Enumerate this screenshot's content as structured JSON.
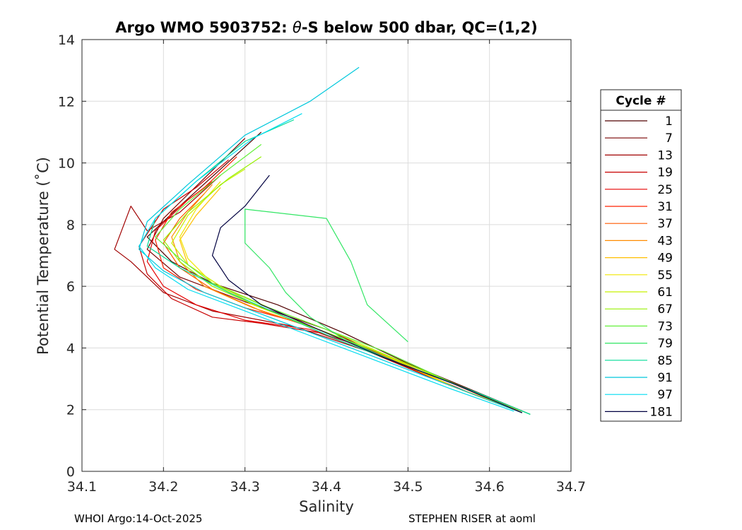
{
  "chart_data": {
    "type": "line",
    "title": "Argo WMO 5903752: θ-S below 500 dbar,  QC=(1,2)",
    "title_parts": {
      "prefix": "Argo WMO 5903752: ",
      "theta": "θ",
      "suffix": "-S below 500 dbar,  QC=(1,2)"
    },
    "xlabel": "Salinity",
    "ylabel": "Potential Temperature (˚C)",
    "xlim": [
      34.1,
      34.7
    ],
    "ylim": [
      0,
      14
    ],
    "xticks": [
      34.1,
      34.2,
      34.3,
      34.4,
      34.5,
      34.6,
      34.7
    ],
    "yticks": [
      0,
      2,
      4,
      6,
      8,
      10,
      12,
      14
    ],
    "xtick_labels": [
      "34.1",
      "34.2",
      "34.3",
      "34.4",
      "34.5",
      "34.6",
      "34.7"
    ],
    "ytick_labels": [
      "0",
      "2",
      "4",
      "6",
      "8",
      "10",
      "12",
      "14"
    ],
    "grid": true,
    "legend": {
      "title": "Cycle #",
      "placement": "right-outside",
      "entries": [
        {
          "label": "1",
          "color": "#500000"
        },
        {
          "label": "7",
          "color": "#780000"
        },
        {
          "label": "13",
          "color": "#a00000"
        },
        {
          "label": "19",
          "color": "#c80000"
        },
        {
          "label": "25",
          "color": "#e60000"
        },
        {
          "label": "31",
          "color": "#ff2000"
        },
        {
          "label": "37",
          "color": "#ff5a00"
        },
        {
          "label": "43",
          "color": "#ff8c00"
        },
        {
          "label": "49",
          "color": "#ffbe00"
        },
        {
          "label": "55",
          "color": "#f0e600"
        },
        {
          "label": "61",
          "color": "#c8f000"
        },
        {
          "label": "67",
          "color": "#96f000"
        },
        {
          "label": "73",
          "color": "#64f03c"
        },
        {
          "label": "79",
          "color": "#32e664"
        },
        {
          "label": "85",
          "color": "#00dc96"
        },
        {
          "label": "91",
          "color": "#00c8dc"
        },
        {
          "label": "97",
          "color": "#00dcf0"
        },
        {
          "label": "181",
          "color": "#000040"
        }
      ]
    },
    "series": [
      {
        "name": "1",
        "color": "#500000",
        "points": [
          [
            34.65,
            1.85
          ],
          [
            34.6,
            2.4
          ],
          [
            34.5,
            3.5
          ],
          [
            34.42,
            4.5
          ],
          [
            34.34,
            5.4
          ],
          [
            34.26,
            6.1
          ],
          [
            34.21,
            6.8
          ],
          [
            34.18,
            7.6
          ],
          [
            34.22,
            8.6
          ],
          [
            34.27,
            9.8
          ],
          [
            34.32,
            11.0
          ]
        ]
      },
      {
        "name": "7",
        "color": "#780000",
        "points": [
          [
            34.64,
            1.9
          ],
          [
            34.58,
            2.5
          ],
          [
            34.48,
            3.6
          ],
          [
            34.4,
            4.6
          ],
          [
            34.3,
            5.5
          ],
          [
            34.22,
            6.3
          ],
          [
            34.18,
            7.2
          ],
          [
            34.2,
            8.2
          ],
          [
            34.25,
            9.5
          ],
          [
            34.3,
            10.8
          ]
        ]
      },
      {
        "name": "13",
        "color": "#a00000",
        "points": [
          [
            34.64,
            1.9
          ],
          [
            34.55,
            2.8
          ],
          [
            34.45,
            3.9
          ],
          [
            34.36,
            4.7
          ],
          [
            34.26,
            5.2
          ],
          [
            34.2,
            5.8
          ],
          [
            34.16,
            6.8
          ],
          [
            34.14,
            7.2
          ],
          [
            34.16,
            8.6
          ],
          [
            34.18,
            7.8
          ],
          [
            34.22,
            8.4
          ],
          [
            34.27,
            9.6
          ]
        ]
      },
      {
        "name": "19",
        "color": "#c80000",
        "points": [
          [
            34.63,
            2.0
          ],
          [
            34.55,
            2.9
          ],
          [
            34.46,
            3.8
          ],
          [
            34.39,
            4.5
          ],
          [
            34.32,
            4.8
          ],
          [
            34.26,
            5.0
          ],
          [
            34.21,
            5.6
          ],
          [
            34.18,
            6.4
          ],
          [
            34.17,
            7.3
          ],
          [
            34.2,
            8.5
          ],
          [
            34.24,
            9.2
          ],
          [
            34.28,
            10.1
          ]
        ]
      },
      {
        "name": "25",
        "color": "#e60000",
        "points": [
          [
            34.64,
            1.95
          ],
          [
            34.56,
            2.7
          ],
          [
            34.46,
            3.9
          ],
          [
            34.38,
            4.6
          ],
          [
            34.3,
            4.9
          ],
          [
            34.24,
            5.4
          ],
          [
            34.2,
            6.0
          ],
          [
            34.18,
            6.8
          ],
          [
            34.19,
            7.8
          ],
          [
            34.23,
            8.8
          ],
          [
            34.26,
            9.4
          ]
        ]
      },
      {
        "name": "31",
        "color": "#ff2000",
        "points": [
          [
            34.63,
            2.0
          ],
          [
            34.54,
            2.9
          ],
          [
            34.45,
            4.0
          ],
          [
            34.37,
            4.8
          ],
          [
            34.3,
            5.3
          ],
          [
            34.24,
            5.9
          ],
          [
            34.2,
            6.6
          ],
          [
            34.19,
            7.5
          ],
          [
            34.21,
            8.4
          ],
          [
            34.25,
            9.2
          ],
          [
            34.29,
            10.2
          ]
        ]
      },
      {
        "name": "37",
        "color": "#ff5a00",
        "points": [
          [
            34.64,
            1.95
          ],
          [
            34.56,
            2.8
          ],
          [
            34.47,
            3.8
          ],
          [
            34.39,
            4.6
          ],
          [
            34.32,
            5.2
          ],
          [
            34.26,
            5.9
          ],
          [
            34.22,
            6.6
          ],
          [
            34.2,
            7.4
          ],
          [
            34.22,
            8.2
          ],
          [
            34.25,
            9.0
          ]
        ]
      },
      {
        "name": "43",
        "color": "#ff8c00",
        "points": [
          [
            34.63,
            2.0
          ],
          [
            34.55,
            2.8
          ],
          [
            34.46,
            3.9
          ],
          [
            34.38,
            4.7
          ],
          [
            34.31,
            5.3
          ],
          [
            34.25,
            6.0
          ],
          [
            34.22,
            6.8
          ],
          [
            34.21,
            7.6
          ],
          [
            34.23,
            8.4
          ],
          [
            34.26,
            9.3
          ]
        ]
      },
      {
        "name": "49",
        "color": "#ffbe00",
        "points": [
          [
            34.64,
            1.95
          ],
          [
            34.56,
            2.7
          ],
          [
            34.47,
            3.8
          ],
          [
            34.39,
            4.6
          ],
          [
            34.32,
            5.3
          ],
          [
            34.27,
            6.0
          ],
          [
            34.23,
            6.7
          ],
          [
            34.22,
            7.5
          ],
          [
            34.24,
            8.3
          ],
          [
            34.27,
            9.2
          ]
        ]
      },
      {
        "name": "55",
        "color": "#f0e600",
        "points": [
          [
            34.63,
            2.0
          ],
          [
            34.55,
            2.8
          ],
          [
            34.46,
            3.9
          ],
          [
            34.38,
            4.7
          ],
          [
            34.31,
            5.4
          ],
          [
            34.26,
            6.1
          ],
          [
            34.23,
            6.9
          ],
          [
            34.22,
            7.6
          ],
          [
            34.24,
            8.5
          ],
          [
            34.27,
            9.4
          ]
        ]
      },
      {
        "name": "61",
        "color": "#c8f000",
        "points": [
          [
            34.64,
            1.9
          ],
          [
            34.57,
            2.7
          ],
          [
            34.48,
            3.7
          ],
          [
            34.4,
            4.6
          ],
          [
            34.33,
            5.3
          ],
          [
            34.27,
            6.0
          ],
          [
            34.23,
            6.7
          ],
          [
            34.21,
            7.4
          ],
          [
            34.23,
            8.3
          ],
          [
            34.27,
            9.3
          ],
          [
            34.3,
            9.8
          ]
        ]
      },
      {
        "name": "67",
        "color": "#96f000",
        "points": [
          [
            34.63,
            2.0
          ],
          [
            34.56,
            2.8
          ],
          [
            34.47,
            3.8
          ],
          [
            34.39,
            4.6
          ],
          [
            34.32,
            5.3
          ],
          [
            34.26,
            6.0
          ],
          [
            34.22,
            6.8
          ],
          [
            34.2,
            7.5
          ],
          [
            34.23,
            8.4
          ],
          [
            34.28,
            9.5
          ],
          [
            34.32,
            10.2
          ]
        ]
      },
      {
        "name": "73",
        "color": "#64f03c",
        "points": [
          [
            34.64,
            1.9
          ],
          [
            34.56,
            2.8
          ],
          [
            34.47,
            3.9
          ],
          [
            34.39,
            4.7
          ],
          [
            34.32,
            5.4
          ],
          [
            34.26,
            6.1
          ],
          [
            34.22,
            6.9
          ],
          [
            34.19,
            7.6
          ],
          [
            34.22,
            8.5
          ],
          [
            34.27,
            9.6
          ],
          [
            34.32,
            10.6
          ]
        ]
      },
      {
        "name": "79",
        "color": "#32e664",
        "points": [
          [
            34.65,
            1.85
          ],
          [
            34.58,
            2.6
          ],
          [
            34.49,
            3.5
          ],
          [
            34.42,
            4.3
          ],
          [
            34.38,
            5.0
          ],
          [
            34.35,
            5.8
          ],
          [
            34.33,
            6.6
          ],
          [
            34.3,
            7.4
          ],
          [
            34.3,
            8.5
          ],
          [
            34.4,
            8.2
          ],
          [
            34.43,
            6.8
          ],
          [
            34.45,
            5.4
          ],
          [
            34.5,
            4.2
          ]
        ]
      },
      {
        "name": "85",
        "color": "#00dc96",
        "points": [
          [
            34.65,
            1.85
          ],
          [
            34.59,
            2.5
          ],
          [
            34.5,
            3.4
          ],
          [
            34.42,
            4.2
          ],
          [
            34.35,
            5.0
          ],
          [
            34.28,
            5.8
          ],
          [
            34.22,
            6.6
          ],
          [
            34.18,
            7.3
          ],
          [
            34.19,
            8.2
          ],
          [
            34.24,
            9.4
          ],
          [
            34.3,
            10.7
          ],
          [
            34.36,
            11.4
          ]
        ]
      },
      {
        "name": "91",
        "color": "#00c8dc",
        "points": [
          [
            34.64,
            1.9
          ],
          [
            34.57,
            2.6
          ],
          [
            34.48,
            3.5
          ],
          [
            34.4,
            4.3
          ],
          [
            34.32,
            5.1
          ],
          [
            34.25,
            5.8
          ],
          [
            34.2,
            6.5
          ],
          [
            34.17,
            7.2
          ],
          [
            34.18,
            8.1
          ],
          [
            34.23,
            9.3
          ],
          [
            34.3,
            10.9
          ],
          [
            34.38,
            12.0
          ],
          [
            34.44,
            13.1
          ]
        ]
      },
      {
        "name": "97",
        "color": "#00dcf0",
        "points": [
          [
            34.63,
            1.95
          ],
          [
            34.55,
            2.7
          ],
          [
            34.46,
            3.6
          ],
          [
            34.38,
            4.4
          ],
          [
            34.3,
            5.2
          ],
          [
            34.23,
            5.9
          ],
          [
            34.19,
            6.6
          ],
          [
            34.17,
            7.3
          ],
          [
            34.19,
            8.2
          ],
          [
            34.24,
            9.4
          ],
          [
            34.31,
            10.8
          ],
          [
            34.37,
            11.6
          ]
        ]
      },
      {
        "name": "181",
        "color": "#000040",
        "points": [
          [
            34.64,
            1.9
          ],
          [
            34.56,
            2.8
          ],
          [
            34.47,
            3.7
          ],
          [
            34.39,
            4.6
          ],
          [
            34.32,
            5.4
          ],
          [
            34.28,
            6.2
          ],
          [
            34.26,
            7.0
          ],
          [
            34.27,
            7.9
          ],
          [
            34.3,
            8.6
          ],
          [
            34.33,
            9.6
          ]
        ]
      }
    ]
  },
  "footer": {
    "left": "WHOI Argo:14-Oct-2025",
    "right": "STEPHEN RISER at aoml"
  }
}
